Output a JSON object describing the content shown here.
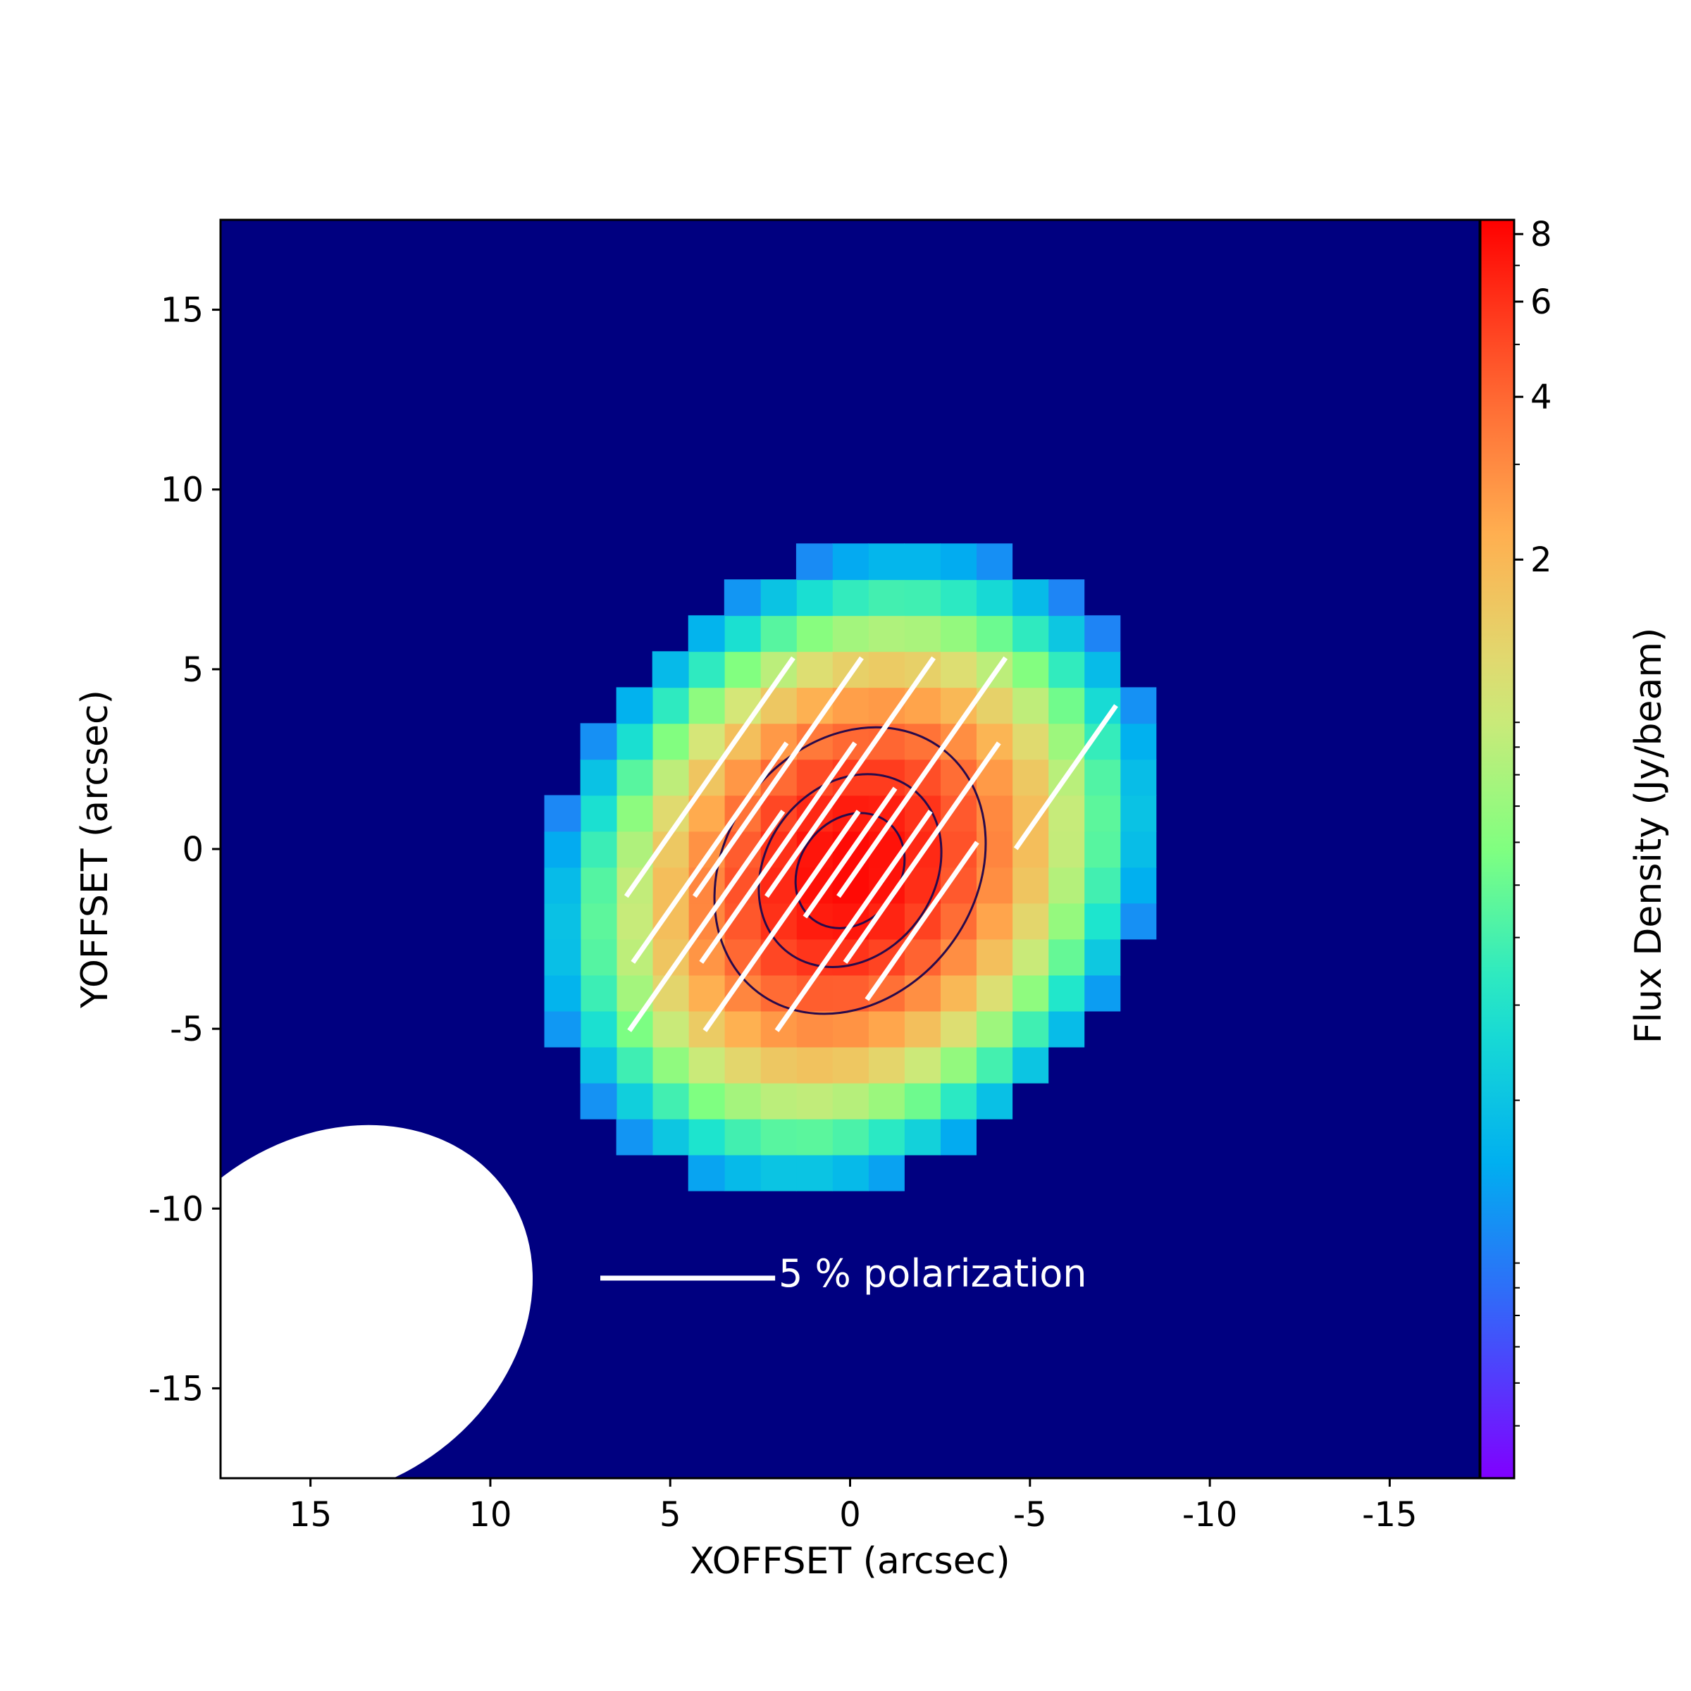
{
  "chart_data": {
    "type": "heatmap",
    "xlabel": "XOFFSET (arcsec)",
    "ylabel": "YOFFSET (arcsec)",
    "xlim": [
      17.5,
      -17.5
    ],
    "ylim": [
      -17.5,
      17.5
    ],
    "xticks": [
      15,
      10,
      5,
      0,
      -5,
      -10,
      -15
    ],
    "xtick_labels": [
      "15",
      "10",
      "5",
      "0",
      "-5",
      "-10",
      "-15"
    ],
    "yticks": [
      15,
      10,
      5,
      0,
      -5,
      -10,
      -15
    ],
    "ytick_labels": [
      "15",
      "10",
      "5",
      "0",
      "-5",
      "-10",
      "-15"
    ],
    "pixel_size_arcsec": 1,
    "colormap": "rainbow",
    "colorbar": {
      "label": "Flux Density (Jy/beam)",
      "scale": "log",
      "range": [
        0.04,
        8.5
      ],
      "ticks": [
        2,
        4,
        6,
        8
      ],
      "tick_labels": [
        "2",
        "4",
        "6",
        "8"
      ]
    },
    "image": {
      "background": "#000080",
      "peak_jy_beam": 8.0,
      "center": [
        0.0,
        -0.6
      ],
      "sigma_major_arcsec": 3.3,
      "sigma_minor_arcsec": 2.7,
      "major_axis_pa_deg": 37,
      "detection_threshold_jy_beam": 0.1
    },
    "contours": {
      "levels_jy_beam": [
        3.5,
        5.5,
        7.0
      ],
      "color": "#2a0a4a"
    },
    "polarization_vectors": {
      "color": "#ffffff",
      "position_angle_deg": 35,
      "reference_percent": 5,
      "segments": [
        {
          "x": 3.9,
          "y": 2.0,
          "p": 5.0
        },
        {
          "x": 2.0,
          "y": 2.0,
          "p": 5.0
        },
        {
          "x": 0.0,
          "y": 2.0,
          "p": 5.0
        },
        {
          "x": -2.0,
          "y": 2.0,
          "p": 5.0
        },
        {
          "x": 3.9,
          "y": -0.1,
          "p": 4.6
        },
        {
          "x": 2.0,
          "y": -0.1,
          "p": 4.6
        },
        {
          "x": 0.0,
          "y": -0.1,
          "p": 2.7
        },
        {
          "x": -2.0,
          "y": -0.1,
          "p": 4.6
        },
        {
          "x": -6.0,
          "y": 2.0,
          "p": 3.0
        },
        {
          "x": 4.0,
          "y": -2.0,
          "p": 4.6
        },
        {
          "x": 1.9,
          "y": -2.0,
          "p": 4.6
        },
        {
          "x": -0.1,
          "y": -2.0,
          "p": 4.6
        },
        {
          "x": -2.0,
          "y": -2.0,
          "p": 3.3
        }
      ]
    },
    "legend": {
      "label": "5 % polarization",
      "reference_percent": 5,
      "placement": "bottom-center"
    },
    "beam": {
      "fwhm_major_arcsec": 11.8,
      "fwhm_minor_arcsec": 9.7,
      "position_angle_deg": 55,
      "center": [
        14.4,
        -12.9
      ],
      "color": "#ffffff",
      "placement": "bottom-left"
    }
  }
}
